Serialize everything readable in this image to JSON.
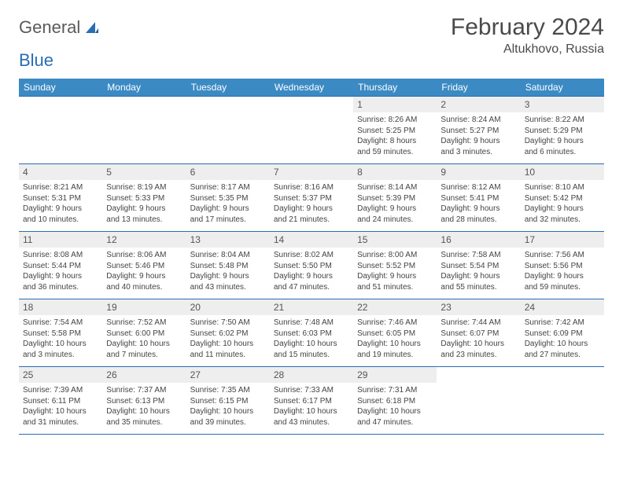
{
  "brand": {
    "word1": "General",
    "word2": "Blue"
  },
  "title": "February 2024",
  "location": "Altukhovo, Russia",
  "colors": {
    "header_bg": "#3b8ac4",
    "border": "#2a6db5",
    "daynum_bg": "#eeeeee"
  },
  "dayHeaders": [
    "Sunday",
    "Monday",
    "Tuesday",
    "Wednesday",
    "Thursday",
    "Friday",
    "Saturday"
  ],
  "weeks": [
    [
      null,
      null,
      null,
      null,
      {
        "n": "1",
        "sr": "Sunrise: 8:26 AM",
        "ss": "Sunset: 5:25 PM",
        "dl1": "Daylight: 8 hours",
        "dl2": "and 59 minutes."
      },
      {
        "n": "2",
        "sr": "Sunrise: 8:24 AM",
        "ss": "Sunset: 5:27 PM",
        "dl1": "Daylight: 9 hours",
        "dl2": "and 3 minutes."
      },
      {
        "n": "3",
        "sr": "Sunrise: 8:22 AM",
        "ss": "Sunset: 5:29 PM",
        "dl1": "Daylight: 9 hours",
        "dl2": "and 6 minutes."
      }
    ],
    [
      {
        "n": "4",
        "sr": "Sunrise: 8:21 AM",
        "ss": "Sunset: 5:31 PM",
        "dl1": "Daylight: 9 hours",
        "dl2": "and 10 minutes."
      },
      {
        "n": "5",
        "sr": "Sunrise: 8:19 AM",
        "ss": "Sunset: 5:33 PM",
        "dl1": "Daylight: 9 hours",
        "dl2": "and 13 minutes."
      },
      {
        "n": "6",
        "sr": "Sunrise: 8:17 AM",
        "ss": "Sunset: 5:35 PM",
        "dl1": "Daylight: 9 hours",
        "dl2": "and 17 minutes."
      },
      {
        "n": "7",
        "sr": "Sunrise: 8:16 AM",
        "ss": "Sunset: 5:37 PM",
        "dl1": "Daylight: 9 hours",
        "dl2": "and 21 minutes."
      },
      {
        "n": "8",
        "sr": "Sunrise: 8:14 AM",
        "ss": "Sunset: 5:39 PM",
        "dl1": "Daylight: 9 hours",
        "dl2": "and 24 minutes."
      },
      {
        "n": "9",
        "sr": "Sunrise: 8:12 AM",
        "ss": "Sunset: 5:41 PM",
        "dl1": "Daylight: 9 hours",
        "dl2": "and 28 minutes."
      },
      {
        "n": "10",
        "sr": "Sunrise: 8:10 AM",
        "ss": "Sunset: 5:42 PM",
        "dl1": "Daylight: 9 hours",
        "dl2": "and 32 minutes."
      }
    ],
    [
      {
        "n": "11",
        "sr": "Sunrise: 8:08 AM",
        "ss": "Sunset: 5:44 PM",
        "dl1": "Daylight: 9 hours",
        "dl2": "and 36 minutes."
      },
      {
        "n": "12",
        "sr": "Sunrise: 8:06 AM",
        "ss": "Sunset: 5:46 PM",
        "dl1": "Daylight: 9 hours",
        "dl2": "and 40 minutes."
      },
      {
        "n": "13",
        "sr": "Sunrise: 8:04 AM",
        "ss": "Sunset: 5:48 PM",
        "dl1": "Daylight: 9 hours",
        "dl2": "and 43 minutes."
      },
      {
        "n": "14",
        "sr": "Sunrise: 8:02 AM",
        "ss": "Sunset: 5:50 PM",
        "dl1": "Daylight: 9 hours",
        "dl2": "and 47 minutes."
      },
      {
        "n": "15",
        "sr": "Sunrise: 8:00 AM",
        "ss": "Sunset: 5:52 PM",
        "dl1": "Daylight: 9 hours",
        "dl2": "and 51 minutes."
      },
      {
        "n": "16",
        "sr": "Sunrise: 7:58 AM",
        "ss": "Sunset: 5:54 PM",
        "dl1": "Daylight: 9 hours",
        "dl2": "and 55 minutes."
      },
      {
        "n": "17",
        "sr": "Sunrise: 7:56 AM",
        "ss": "Sunset: 5:56 PM",
        "dl1": "Daylight: 9 hours",
        "dl2": "and 59 minutes."
      }
    ],
    [
      {
        "n": "18",
        "sr": "Sunrise: 7:54 AM",
        "ss": "Sunset: 5:58 PM",
        "dl1": "Daylight: 10 hours",
        "dl2": "and 3 minutes."
      },
      {
        "n": "19",
        "sr": "Sunrise: 7:52 AM",
        "ss": "Sunset: 6:00 PM",
        "dl1": "Daylight: 10 hours",
        "dl2": "and 7 minutes."
      },
      {
        "n": "20",
        "sr": "Sunrise: 7:50 AM",
        "ss": "Sunset: 6:02 PM",
        "dl1": "Daylight: 10 hours",
        "dl2": "and 11 minutes."
      },
      {
        "n": "21",
        "sr": "Sunrise: 7:48 AM",
        "ss": "Sunset: 6:03 PM",
        "dl1": "Daylight: 10 hours",
        "dl2": "and 15 minutes."
      },
      {
        "n": "22",
        "sr": "Sunrise: 7:46 AM",
        "ss": "Sunset: 6:05 PM",
        "dl1": "Daylight: 10 hours",
        "dl2": "and 19 minutes."
      },
      {
        "n": "23",
        "sr": "Sunrise: 7:44 AM",
        "ss": "Sunset: 6:07 PM",
        "dl1": "Daylight: 10 hours",
        "dl2": "and 23 minutes."
      },
      {
        "n": "24",
        "sr": "Sunrise: 7:42 AM",
        "ss": "Sunset: 6:09 PM",
        "dl1": "Daylight: 10 hours",
        "dl2": "and 27 minutes."
      }
    ],
    [
      {
        "n": "25",
        "sr": "Sunrise: 7:39 AM",
        "ss": "Sunset: 6:11 PM",
        "dl1": "Daylight: 10 hours",
        "dl2": "and 31 minutes."
      },
      {
        "n": "26",
        "sr": "Sunrise: 7:37 AM",
        "ss": "Sunset: 6:13 PM",
        "dl1": "Daylight: 10 hours",
        "dl2": "and 35 minutes."
      },
      {
        "n": "27",
        "sr": "Sunrise: 7:35 AM",
        "ss": "Sunset: 6:15 PM",
        "dl1": "Daylight: 10 hours",
        "dl2": "and 39 minutes."
      },
      {
        "n": "28",
        "sr": "Sunrise: 7:33 AM",
        "ss": "Sunset: 6:17 PM",
        "dl1": "Daylight: 10 hours",
        "dl2": "and 43 minutes."
      },
      {
        "n": "29",
        "sr": "Sunrise: 7:31 AM",
        "ss": "Sunset: 6:18 PM",
        "dl1": "Daylight: 10 hours",
        "dl2": "and 47 minutes."
      },
      null,
      null
    ]
  ]
}
